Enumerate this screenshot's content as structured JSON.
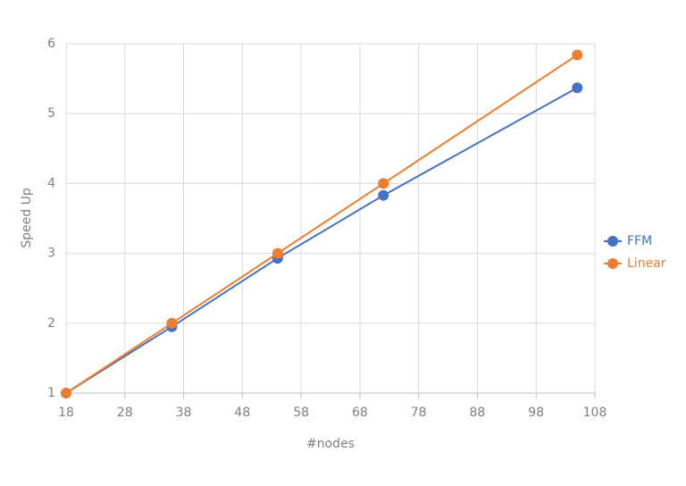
{
  "chart_data": {
    "type": "line",
    "x_label": "#nodes",
    "y_label": "Speed Up",
    "series": [
      {
        "name": "FFM",
        "color": "#4472c4",
        "x": [
          18,
          36,
          54,
          72,
          105
        ],
        "values": [
          1,
          1.95,
          2.93,
          3.83,
          5.37
        ]
      },
      {
        "name": "Linear",
        "color": "#ed7d31",
        "x": [
          18,
          36,
          54,
          72,
          105
        ],
        "values": [
          1,
          2,
          3,
          4,
          5.84
        ]
      }
    ],
    "xlim": [
      18,
      108
    ],
    "xticks": [
      18,
      28,
      38,
      48,
      58,
      68,
      78,
      88,
      98,
      108
    ],
    "ylim": [
      1,
      6
    ],
    "yticks": [
      1,
      2,
      3,
      4,
      5,
      6
    ],
    "grid": true,
    "legend": "right"
  }
}
